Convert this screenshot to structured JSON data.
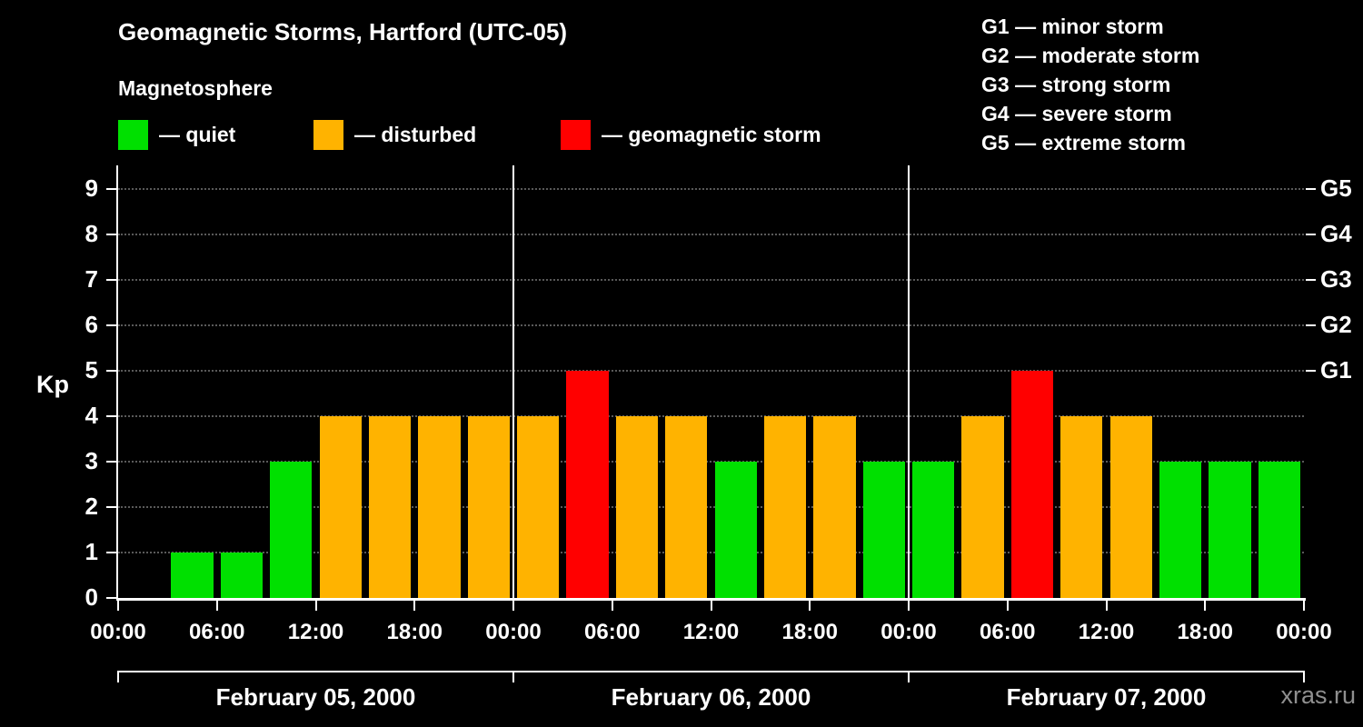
{
  "header": {
    "title": "Geomagnetic Storms, Hartford (UTC-05)",
    "subtitle": "Magnetosphere"
  },
  "legend": {
    "items": [
      {
        "name": "quiet",
        "label": "— quiet",
        "color": "#00e000"
      },
      {
        "name": "disturbed",
        "label": "— disturbed",
        "color": "#ffb300"
      },
      {
        "name": "storm",
        "label": "— geomagnetic storm",
        "color": "#ff0000"
      }
    ]
  },
  "storm_scale_legend": {
    "items": [
      "G1 — minor storm",
      "G2 — moderate storm",
      "G3 — strong storm",
      "G4 — severe storm",
      "G5 — extreme storm"
    ]
  },
  "chart_data": {
    "type": "bar",
    "title": "Geomagnetic Storms, Hartford (UTC-05)",
    "subtitle": "Magnetosphere",
    "ylabel": "Kp",
    "ylim": [
      0,
      9.5
    ],
    "yticks": [
      0,
      1,
      2,
      3,
      4,
      5,
      6,
      7,
      8,
      9
    ],
    "right_axis_labels": [
      {
        "label": "G1",
        "kp": 5
      },
      {
        "label": "G2",
        "kp": 6
      },
      {
        "label": "G3",
        "kp": 7
      },
      {
        "label": "G4",
        "kp": 8
      },
      {
        "label": "G5",
        "kp": 9
      }
    ],
    "x_tick_labels": [
      "00:00",
      "06:00",
      "12:00",
      "18:00",
      "00:00",
      "06:00",
      "12:00",
      "18:00",
      "00:00",
      "06:00",
      "12:00",
      "18:00",
      "00:00"
    ],
    "interval_hours": 3,
    "days": [
      {
        "date": "February 05, 2000",
        "kp": [
          0,
          1,
          1,
          3,
          4,
          4,
          4,
          4
        ]
      },
      {
        "date": "February 06, 2000",
        "kp": [
          4,
          5,
          4,
          4,
          3,
          4,
          4,
          3
        ]
      },
      {
        "date": "February 07, 2000",
        "kp": [
          3,
          4,
          5,
          4,
          4,
          3,
          3,
          3
        ]
      }
    ],
    "colors": {
      "quiet": "#00e000",
      "disturbed": "#ffb300",
      "storm": "#ff0000"
    },
    "thresholds": {
      "disturbed_min": 4,
      "storm_min": 5
    },
    "grid": "dotted horizontal",
    "legend_position": "top-left and top-right"
  },
  "watermark": "xras.ru"
}
